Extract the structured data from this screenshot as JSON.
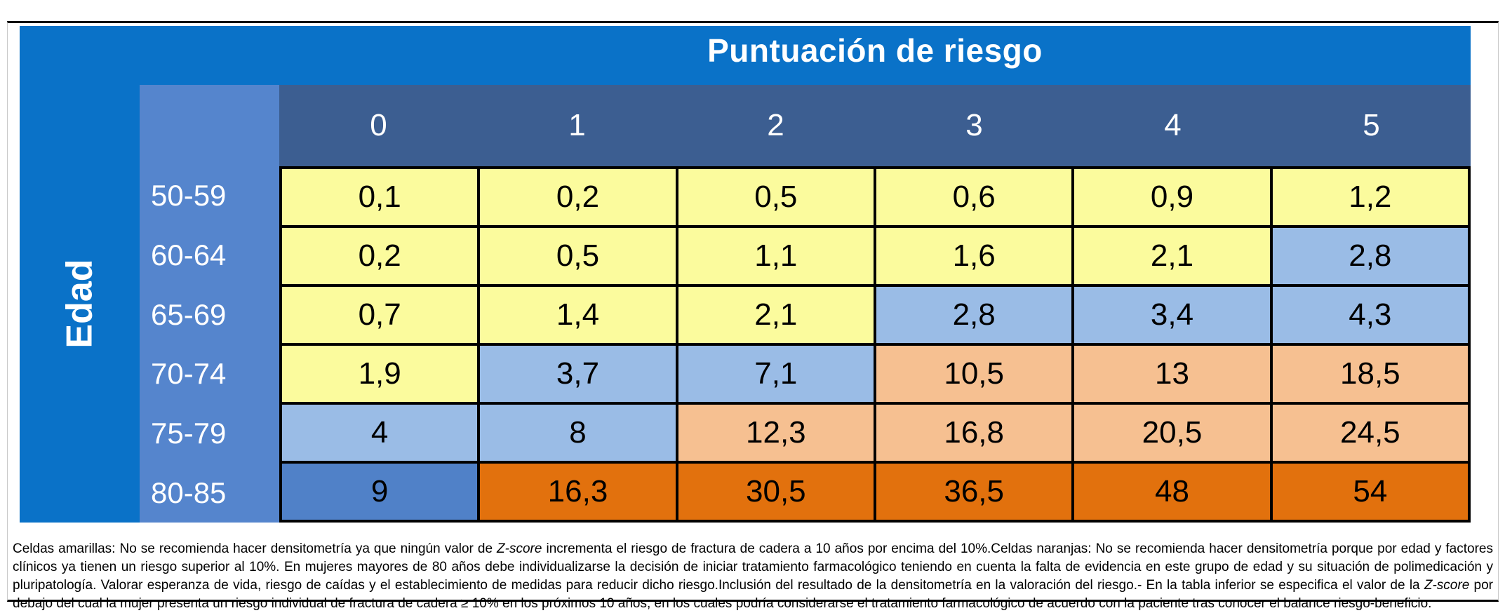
{
  "table": {
    "title": "Puntuación de riesgo",
    "corner_label": "Edad",
    "col_headers": [
      "0",
      "1",
      "2",
      "3",
      "4",
      "5"
    ],
    "rows": [
      {
        "label": "50-59",
        "cells": [
          {
            "v": "0,1",
            "c": "yellow"
          },
          {
            "v": "0,2",
            "c": "yellow"
          },
          {
            "v": "0,5",
            "c": "yellow"
          },
          {
            "v": "0,6",
            "c": "yellow"
          },
          {
            "v": "0,9",
            "c": "yellow"
          },
          {
            "v": "1,2",
            "c": "yellow"
          }
        ]
      },
      {
        "label": "60-64",
        "cells": [
          {
            "v": "0,2",
            "c": "yellow"
          },
          {
            "v": "0,5",
            "c": "yellow"
          },
          {
            "v": "1,1",
            "c": "yellow"
          },
          {
            "v": "1,6",
            "c": "yellow"
          },
          {
            "v": "2,1",
            "c": "yellow"
          },
          {
            "v": "2,8",
            "c": "lightblue"
          }
        ]
      },
      {
        "label": "65-69",
        "cells": [
          {
            "v": "0,7",
            "c": "yellow"
          },
          {
            "v": "1,4",
            "c": "yellow"
          },
          {
            "v": "2,1",
            "c": "yellow"
          },
          {
            "v": "2,8",
            "c": "lightblue"
          },
          {
            "v": "3,4",
            "c": "lightblue"
          },
          {
            "v": "4,3",
            "c": "lightblue"
          }
        ]
      },
      {
        "label": "70-74",
        "cells": [
          {
            "v": "1,9",
            "c": "yellow"
          },
          {
            "v": "3,7",
            "c": "lightblue"
          },
          {
            "v": "7,1",
            "c": "lightblue"
          },
          {
            "v": "10,5",
            "c": "peach"
          },
          {
            "v": "13",
            "c": "peach"
          },
          {
            "v": "18,5",
            "c": "peach"
          }
        ]
      },
      {
        "label": "75-79",
        "cells": [
          {
            "v": "4",
            "c": "lightblue"
          },
          {
            "v": "8",
            "c": "lightblue"
          },
          {
            "v": "12,3",
            "c": "peach"
          },
          {
            "v": "16,8",
            "c": "peach"
          },
          {
            "v": "20,5",
            "c": "peach"
          },
          {
            "v": "24,5",
            "c": "peach"
          }
        ]
      },
      {
        "label": "80-85",
        "cells": [
          {
            "v": "9",
            "c": "mediumblue"
          },
          {
            "v": "16,3",
            "c": "orange"
          },
          {
            "v": "30,5",
            "c": "orange"
          },
          {
            "v": "36,5",
            "c": "orange"
          },
          {
            "v": "48",
            "c": "orange"
          },
          {
            "v": "54",
            "c": "orange"
          }
        ]
      }
    ]
  },
  "colors": {
    "outer_blue": "#0a72c8",
    "header_dark_blue": "#3c5e91",
    "row_label_blue": "#5585cd",
    "yellow": "#fbfb9d",
    "lightblue": "#9abce6",
    "mediumblue": "#5081c8",
    "peach": "#f6c091",
    "orange": "#e2710d"
  },
  "footnote": {
    "segments": [
      {
        "text": "Celdas amarillas: No se recomienda hacer densitometría ya que ningún valor de ",
        "italic": false
      },
      {
        "text": "Z-score",
        "italic": true
      },
      {
        "text": " incrementa el riesgo de fractura de cadera a 10 años por encima del 10%.Celdas naranjas: No se recomienda hacer densitometría porque por edad y factores clínicos ya tienen un riesgo superior al 10%. En mujeres mayores de 80 años debe individualizarse la decisión de iniciar tratamiento farmacológico teniendo en cuenta la falta de evidencia en este grupo de edad y su situación de polimedicación y pluripatología. Valorar esperanza de vida, riesgo de caídas y el establecimiento de medidas para reducir dicho riesgo.Inclusión del resultado de la densitometría en la valoración del riesgo.- En la tabla inferior se especifica el valor de la ",
        "italic": false
      },
      {
        "text": "Z-score",
        "italic": true
      },
      {
        "text": " por debajo del cual la mujer presenta un riesgo individual de fractura de cadera ≥ 10% en los próximos 10 años, en los cuales podría considerarse el tratamiento farmacológico de acuerdo con la paciente tras conocer el balance riesgo-beneficio.",
        "italic": false
      }
    ]
  }
}
